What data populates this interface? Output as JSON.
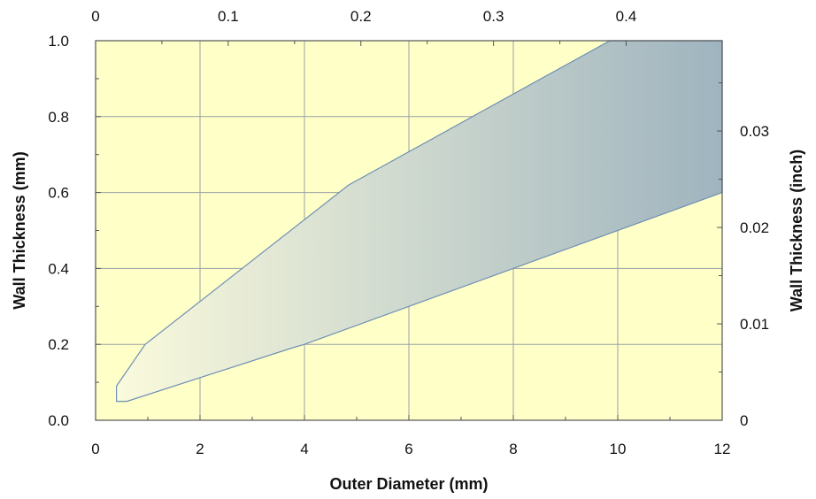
{
  "chart_data": {
    "type": "area",
    "title": "",
    "xlabel": "Outer Diameter (mm)",
    "ylabel": "Wall Thickness (mm)",
    "y2label": "Wall Thickness (inch)",
    "xlim": [
      0,
      12
    ],
    "ylim": [
      0,
      1.0
    ],
    "x2lim": [
      0,
      0.4724
    ],
    "y2lim": [
      0,
      0.03937
    ],
    "x_ticks": [
      0,
      2,
      4,
      6,
      8,
      10,
      12
    ],
    "x_tick_labels": [
      "0",
      "2",
      "4",
      "6",
      "8",
      "10",
      "12"
    ],
    "y_ticks": [
      0,
      0.2,
      0.4,
      0.6,
      0.8,
      1.0
    ],
    "y_tick_labels": [
      "0.0",
      "0.2",
      "0.4",
      "0.6",
      "0.8",
      "1.0"
    ],
    "x2_ticks": [
      0,
      0.1,
      0.2,
      0.3,
      0.4
    ],
    "x2_tick_labels": [
      "0",
      "0.1",
      "0.2",
      "0.3",
      "0.4"
    ],
    "y2_ticks": [
      0,
      0.01,
      0.02,
      0.03
    ],
    "y2_tick_labels": [
      "0",
      "0.01",
      "0.02",
      "0.03"
    ],
    "grid": true,
    "region": {
      "upper_boundary": [
        {
          "x": 0.4,
          "y": 0.09
        },
        {
          "x": 0.95,
          "y": 0.2
        },
        {
          "x": 4.85,
          "y": 0.62
        },
        {
          "x": 9.85,
          "y": 1.0
        },
        {
          "x": 12,
          "y": 1.0
        }
      ],
      "lower_boundary": [
        {
          "x": 0.4,
          "y": 0.05
        },
        {
          "x": 0.6,
          "y": 0.05
        },
        {
          "x": 3.75,
          "y": 0.19
        },
        {
          "x": 4.0,
          "y": 0.2
        },
        {
          "x": 12,
          "y": 0.6
        }
      ]
    },
    "colors": {
      "background": "#ffffc8",
      "grid": "#9aa0a6",
      "frame": "#555555",
      "fill_start": "#fafadc",
      "fill_end": "#9fb4bf",
      "outline": "#6f8fb5"
    }
  }
}
